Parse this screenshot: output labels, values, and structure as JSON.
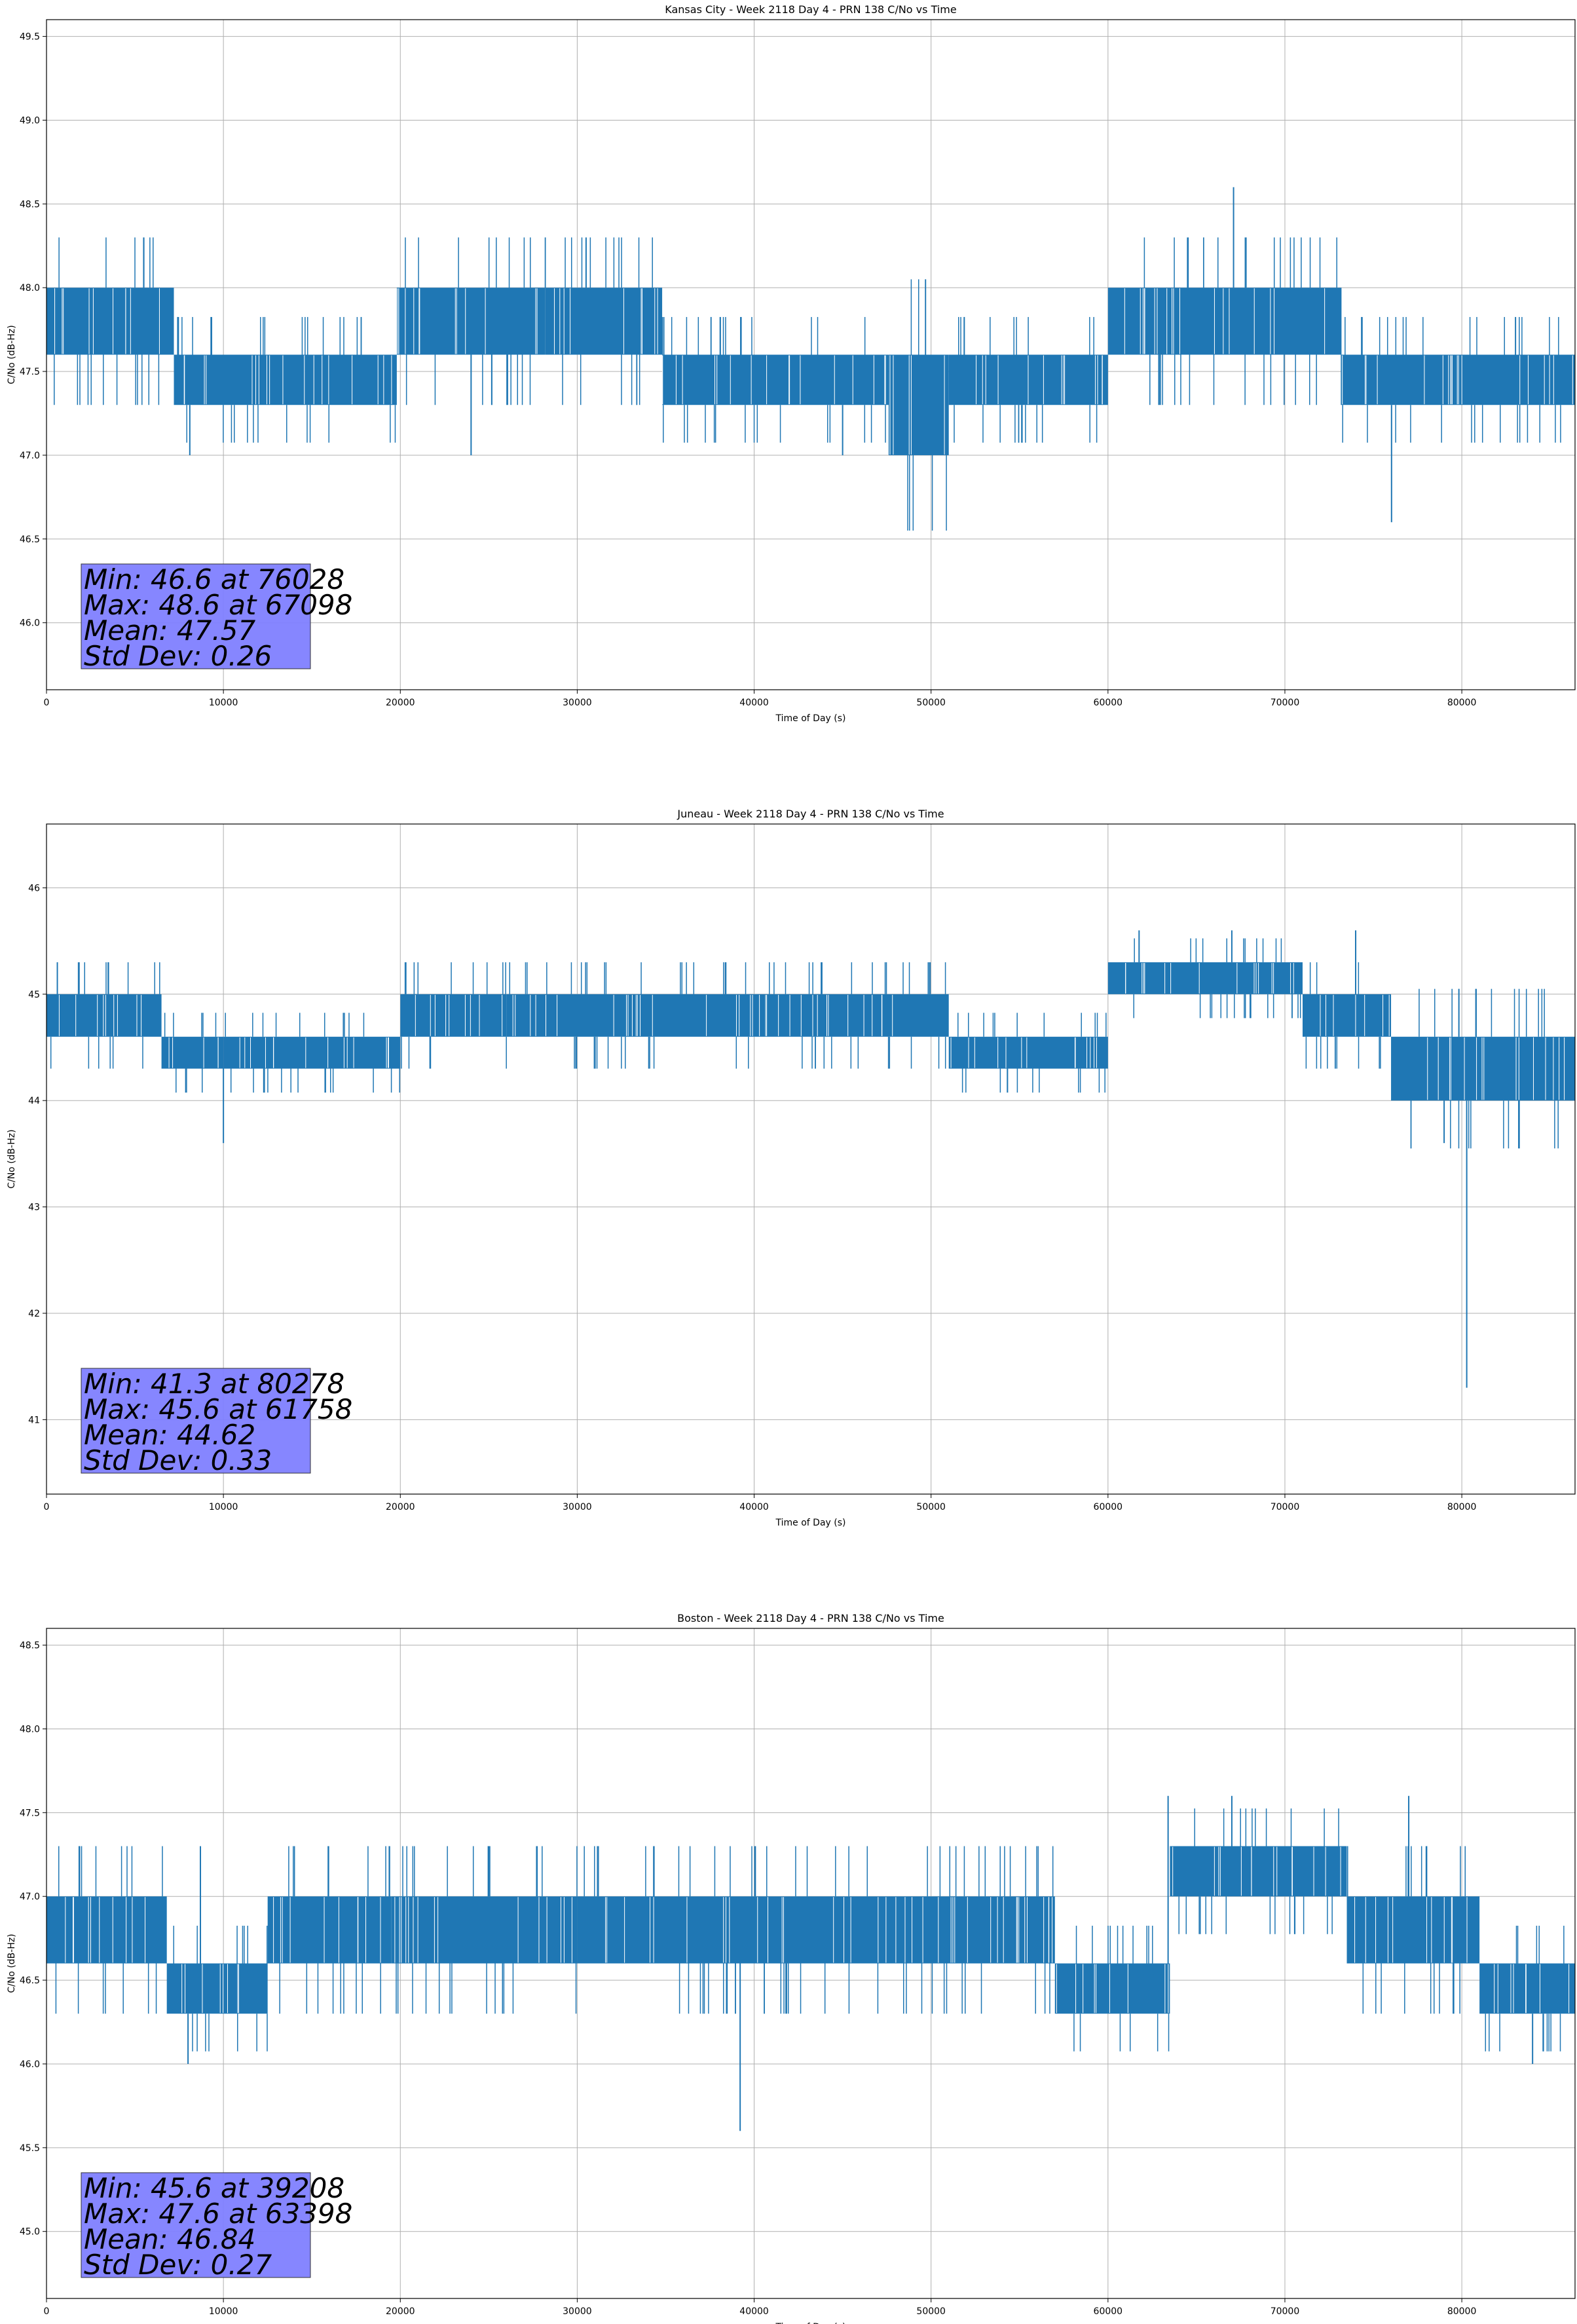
{
  "chart_data": [
    {
      "type": "line",
      "title": "Kansas City - Week 2118 Day 4 - PRN 138 C/No vs Time",
      "xlabel": "Time of Day (s)",
      "ylabel": "C/No (dB-Hz)",
      "xlim": [
        0,
        86400
      ],
      "ylim": [
        45.6,
        49.6
      ],
      "xticks": [
        0,
        10000,
        20000,
        30000,
        40000,
        50000,
        60000,
        70000,
        80000
      ],
      "yticks": [
        46.0,
        46.5,
        47.0,
        47.5,
        48.0,
        48.5,
        49.0,
        49.5
      ],
      "ytick_labels": [
        "46.0",
        "46.5",
        "47.0",
        "47.5",
        "48.0",
        "48.5",
        "49.0",
        "49.5"
      ],
      "grid": true,
      "color": "#1f77b4",
      "series": {
        "name": "C/No",
        "band_segments": [
          [
            0,
            7200,
            47.6,
            48.0
          ],
          [
            7200,
            14600,
            47.3,
            47.6
          ],
          [
            14600,
            19800,
            47.3,
            47.6
          ],
          [
            19800,
            28200,
            47.6,
            48.0
          ],
          [
            28200,
            34800,
            47.6,
            48.0
          ],
          [
            34800,
            47600,
            47.3,
            47.6
          ],
          [
            47600,
            51000,
            47.0,
            47.6
          ],
          [
            51000,
            60000,
            47.3,
            47.6
          ],
          [
            60000,
            73200,
            47.6,
            48.0
          ],
          [
            73200,
            86400,
            47.3,
            47.6
          ]
        ],
        "spikes": [
          [
            76028,
            46.6
          ],
          [
            67098,
            48.6
          ],
          [
            8100,
            47.0
          ],
          [
            5500,
            48.3
          ],
          [
            30500,
            48.3
          ],
          [
            64500,
            48.3
          ],
          [
            45000,
            47.0
          ],
          [
            24000,
            47.0
          ]
        ]
      },
      "stats": [
        "Min: 46.6 at 76028",
        "Max: 48.6 at 67098",
        "Mean: 47.57",
        "Std Dev: 0.26"
      ],
      "stats_box_color": "#7f7fff"
    },
    {
      "type": "line",
      "title": "Juneau - Week 2118 Day 4 - PRN 138 C/No vs Time",
      "xlabel": "Time of Day (s)",
      "ylabel": "C/No (dB-Hz)",
      "xlim": [
        0,
        86400
      ],
      "ylim": [
        40.3,
        46.6
      ],
      "xticks": [
        0,
        10000,
        20000,
        30000,
        40000,
        50000,
        60000,
        70000,
        80000
      ],
      "yticks": [
        41,
        42,
        43,
        44,
        45,
        46
      ],
      "ytick_labels": [
        "41",
        "42",
        "43",
        "44",
        "45",
        "46"
      ],
      "grid": true,
      "color": "#1f77b4",
      "series": {
        "name": "C/No",
        "band_segments": [
          [
            0,
            6500,
            44.6,
            45.0
          ],
          [
            6500,
            10000,
            44.3,
            44.6
          ],
          [
            10000,
            20000,
            44.3,
            44.6
          ],
          [
            20000,
            26000,
            44.6,
            45.0
          ],
          [
            26000,
            36000,
            44.6,
            45.0
          ],
          [
            36000,
            51000,
            44.6,
            45.0
          ],
          [
            51000,
            60000,
            44.3,
            44.6
          ],
          [
            60000,
            71000,
            45.0,
            45.3
          ],
          [
            71000,
            76000,
            44.6,
            45.0
          ],
          [
            76000,
            86400,
            44.0,
            44.6
          ]
        ],
        "spikes": [
          [
            80278,
            41.3
          ],
          [
            61758,
            45.6
          ],
          [
            10000,
            43.6
          ],
          [
            3500,
            45.3
          ],
          [
            67000,
            45.6
          ],
          [
            74000,
            45.6
          ],
          [
            79000,
            43.6
          ]
        ]
      },
      "stats": [
        "Min: 41.3 at 80278",
        "Max: 45.6 at 61758",
        "Mean: 44.62",
        "Std Dev: 0.33"
      ],
      "stats_box_color": "#7f7fff"
    },
    {
      "type": "line",
      "title": "Boston - Week 2118 Day 4 - PRN 138 C/No vs Time",
      "xlabel": "Time of Day (s)",
      "ylabel": "C/No (dB-Hz)",
      "xlim": [
        0,
        86400
      ],
      "ylim": [
        44.6,
        48.6
      ],
      "xticks": [
        0,
        10000,
        20000,
        30000,
        40000,
        50000,
        60000,
        70000,
        80000
      ],
      "yticks": [
        45.0,
        45.5,
        46.0,
        46.5,
        47.0,
        47.5,
        48.0,
        48.5
      ],
      "ytick_labels": [
        "45.0",
        "45.5",
        "46.0",
        "46.5",
        "47.0",
        "47.5",
        "48.0",
        "48.5"
      ],
      "grid": true,
      "color": "#1f77b4",
      "series": {
        "name": "C/No",
        "band_segments": [
          [
            0,
            6800,
            46.6,
            47.0
          ],
          [
            6800,
            12500,
            46.3,
            46.6
          ],
          [
            12500,
            19500,
            46.6,
            47.0
          ],
          [
            19500,
            30000,
            46.6,
            47.0
          ],
          [
            30000,
            57000,
            46.6,
            47.0
          ],
          [
            57000,
            63500,
            46.3,
            46.6
          ],
          [
            63500,
            73500,
            47.0,
            47.3
          ],
          [
            73500,
            81000,
            46.6,
            47.0
          ],
          [
            81000,
            86400,
            46.3,
            46.6
          ]
        ],
        "spikes": [
          [
            39208,
            45.6
          ],
          [
            63398,
            47.6
          ],
          [
            8000,
            46.0
          ],
          [
            8700,
            47.3
          ],
          [
            67000,
            47.6
          ],
          [
            77000,
            47.6
          ],
          [
            84000,
            46.0
          ]
        ]
      },
      "stats": [
        "Min: 45.6 at 39208",
        "Max: 47.6 at 63398",
        "Mean: 46.84",
        "Std Dev: 0.27"
      ],
      "stats_box_color": "#7f7fff"
    }
  ]
}
